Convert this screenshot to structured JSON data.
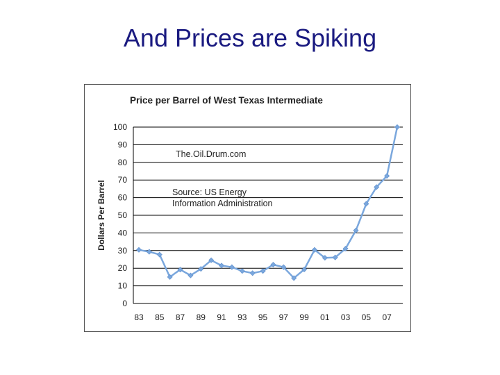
{
  "slide": {
    "title": "And Prices are Spiking"
  },
  "chart_data": {
    "type": "line",
    "title": "Price per Barrel of West Texas Intermediate",
    "xlabel": "",
    "ylabel": "Dollars Per Barrel",
    "ylim": [
      0,
      100
    ],
    "yticks": [
      0,
      10,
      20,
      30,
      40,
      50,
      60,
      70,
      80,
      90,
      100
    ],
    "grid": true,
    "x_tick_labels": [
      "83",
      "85",
      "87",
      "89",
      "91",
      "93",
      "95",
      "97",
      "99",
      "01",
      "03",
      "05",
      "07"
    ],
    "x": [
      1983,
      1984,
      1985,
      1986,
      1987,
      1988,
      1989,
      1990,
      1991,
      1992,
      1993,
      1994,
      1995,
      1996,
      1997,
      1998,
      1999,
      2000,
      2001,
      2002,
      2003,
      2004,
      2005,
      2006,
      2007,
      2008
    ],
    "series": [
      {
        "color": "#7aa7dd",
        "values": [
          30.4,
          29.3,
          27.7,
          15.0,
          19.2,
          15.9,
          19.6,
          24.5,
          21.5,
          20.6,
          18.4,
          17.2,
          18.4,
          22.0,
          20.6,
          14.4,
          19.3,
          30.4,
          25.9,
          26.1,
          31.1,
          41.4,
          56.5,
          66.0,
          72.3,
          100.0
        ]
      }
    ],
    "annotations": [
      {
        "text": "The.Oil.Drum.com"
      },
      {
        "text": "Source: US Energy"
      },
      {
        "text": "Information Administration"
      }
    ]
  }
}
